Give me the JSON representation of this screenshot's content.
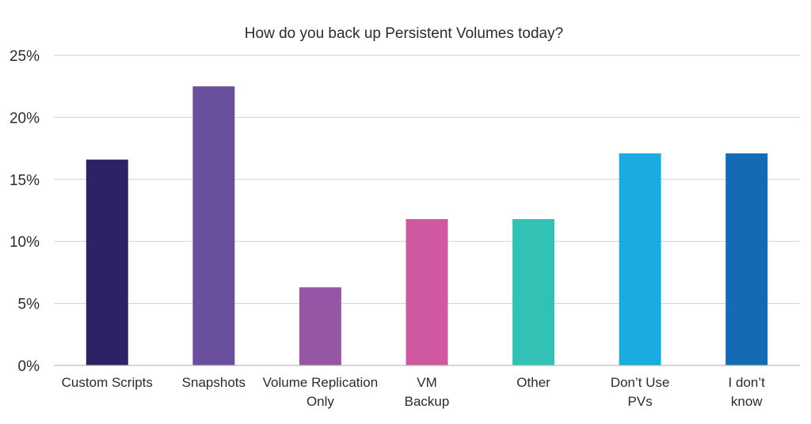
{
  "chart_data": {
    "type": "bar",
    "title": "How do you back up Persistent Volumes today?",
    "xlabel": "",
    "ylabel": "",
    "ylim": [
      0,
      25
    ],
    "yticks": [
      0,
      5,
      10,
      15,
      20,
      25
    ],
    "ytick_labels": [
      "0%",
      "5%",
      "10%",
      "15%",
      "20%",
      "25%"
    ],
    "grid": true,
    "legend": "none",
    "categories": [
      [
        "Custom Scripts"
      ],
      [
        "Snapshots"
      ],
      [
        "Volume Replication",
        "Only"
      ],
      [
        "VM",
        "Backup"
      ],
      [
        "Other"
      ],
      [
        "Don’t Use",
        "PVs"
      ],
      [
        "I don’t",
        "know"
      ]
    ],
    "values": [
      16.6,
      22.5,
      6.3,
      11.8,
      11.8,
      17.1,
      17.1
    ],
    "colors": [
      "#2d2266",
      "#6a4f9e",
      "#9556a4",
      "#d058a0",
      "#31c1b5",
      "#1aabe0",
      "#156bb3"
    ]
  }
}
